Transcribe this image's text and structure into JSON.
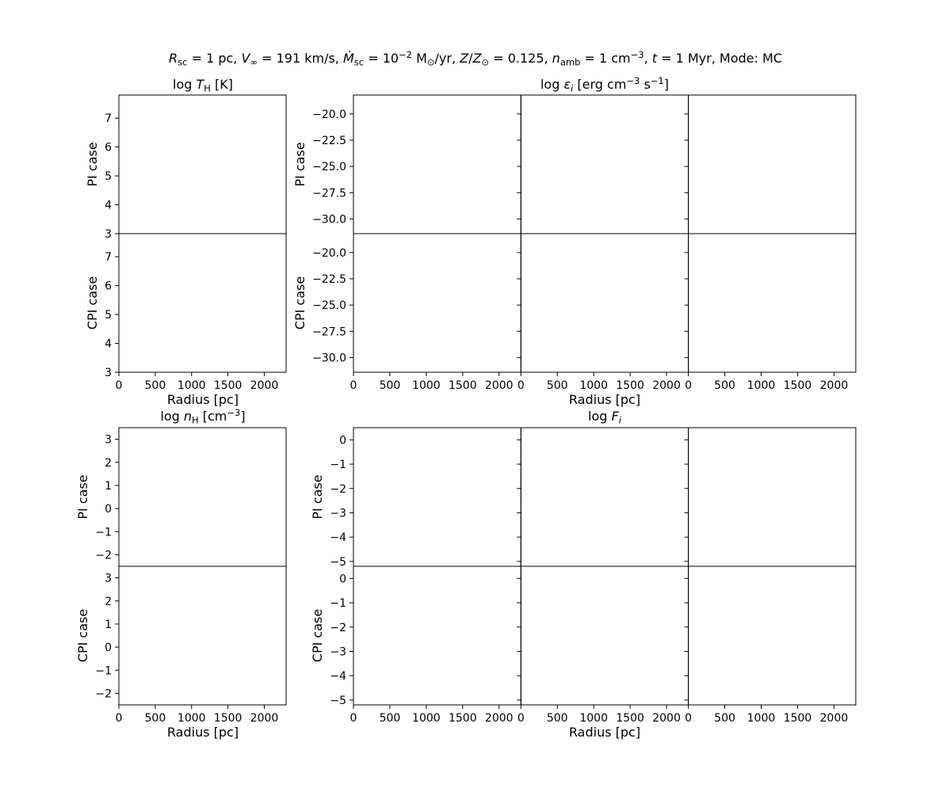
{
  "suptitle": {
    "parts": [
      {
        "t": "R",
        "i": true
      },
      {
        "t": "sc",
        "sub": true
      },
      {
        "t": " = 1 pc, "
      },
      {
        "t": "V",
        "i": true
      },
      {
        "t": "∞",
        "sub": true
      },
      {
        "t": " = 191 km/s, "
      },
      {
        "t": "Ṁ",
        "i": true
      },
      {
        "t": "sc",
        "sub": true
      },
      {
        "t": " = 10"
      },
      {
        "t": "−2",
        "sup": true
      },
      {
        "t": " M"
      },
      {
        "t": "⊙",
        "sub": true
      },
      {
        "t": "/yr, "
      },
      {
        "t": "Z",
        "i": true
      },
      {
        "t": "/"
      },
      {
        "t": "Z",
        "i": true
      },
      {
        "t": "⊙",
        "sub": true
      },
      {
        "t": " = 0.125, "
      },
      {
        "t": "n",
        "i": true
      },
      {
        "t": "amb",
        "sub": true
      },
      {
        "t": " = 1 cm"
      },
      {
        "t": "−3",
        "sup": true
      },
      {
        "t": ", "
      },
      {
        "t": "t",
        "i": true
      },
      {
        "t": " = 1 Myr, Mode: MC"
      }
    ]
  },
  "chart_data": [
    {
      "id": "temperature",
      "type": "line",
      "title": [
        {
          "t": "log "
        },
        {
          "t": "T",
          "i": true
        },
        {
          "t": "H",
          "sub": true
        },
        {
          "t": " [K]"
        }
      ],
      "xlabel": "Radius [pc]",
      "xlim": [
        0,
        2300
      ],
      "xticks": [
        0,
        500,
        1000,
        1500,
        2000
      ],
      "ylim": [
        3,
        7.8
      ],
      "yticks": [
        3,
        4,
        5,
        6,
        7
      ],
      "columns": 1,
      "rows": [
        {
          "ylabel": "PI case"
        },
        {
          "ylabel": "CPI case"
        }
      ],
      "series": []
    },
    {
      "id": "emissivity",
      "type": "line",
      "title": [
        {
          "t": "log "
        },
        {
          "t": "ε",
          "i": true
        },
        {
          "t": "i",
          "sub": true,
          "i": true
        },
        {
          "t": " [erg cm"
        },
        {
          "t": "−3",
          "sup": true
        },
        {
          "t": " s"
        },
        {
          "t": "−1",
          "sup": true
        },
        {
          "t": "]"
        }
      ],
      "xlabel": "Radius [pc]",
      "xlim": [
        0,
        2300
      ],
      "xticks": [
        0,
        500,
        1000,
        1500,
        2000
      ],
      "ylim": [
        -31.4,
        -18.2
      ],
      "yticks": [
        -30.0,
        -27.5,
        -25.0,
        -22.5,
        -20.0
      ],
      "ytick_decimals": 1,
      "columns": 3,
      "rows": [
        {
          "ylabel": "PI case"
        },
        {
          "ylabel": "CPI case"
        }
      ],
      "series": []
    },
    {
      "id": "density",
      "type": "line",
      "title": [
        {
          "t": "log "
        },
        {
          "t": "n",
          "i": true
        },
        {
          "t": "H",
          "sub": true
        },
        {
          "t": " [cm"
        },
        {
          "t": "−3",
          "sup": true
        },
        {
          "t": "]"
        }
      ],
      "xlabel": "Radius [pc]",
      "xlim": [
        0,
        2300
      ],
      "xticks": [
        0,
        500,
        1000,
        1500,
        2000
      ],
      "ylim": [
        -2.5,
        3.5
      ],
      "yticks": [
        -2,
        -1,
        0,
        1,
        2,
        3
      ],
      "columns": 1,
      "rows": [
        {
          "ylabel": "PI case"
        },
        {
          "ylabel": "CPI case"
        }
      ],
      "series": []
    },
    {
      "id": "fraction",
      "type": "line",
      "title": [
        {
          "t": "log "
        },
        {
          "t": "F",
          "i": true
        },
        {
          "t": "i",
          "sub": true,
          "i": true
        }
      ],
      "xlabel": "Radius [pc]",
      "xlim": [
        0,
        2300
      ],
      "xticks": [
        0,
        500,
        1000,
        1500,
        2000
      ],
      "ylim": [
        -5.2,
        0.5
      ],
      "yticks": [
        -5,
        -4,
        -3,
        -2,
        -1,
        0
      ],
      "columns": 3,
      "rows": [
        {
          "ylabel": "PI case"
        },
        {
          "ylabel": "CPI case"
        }
      ],
      "series": []
    }
  ]
}
